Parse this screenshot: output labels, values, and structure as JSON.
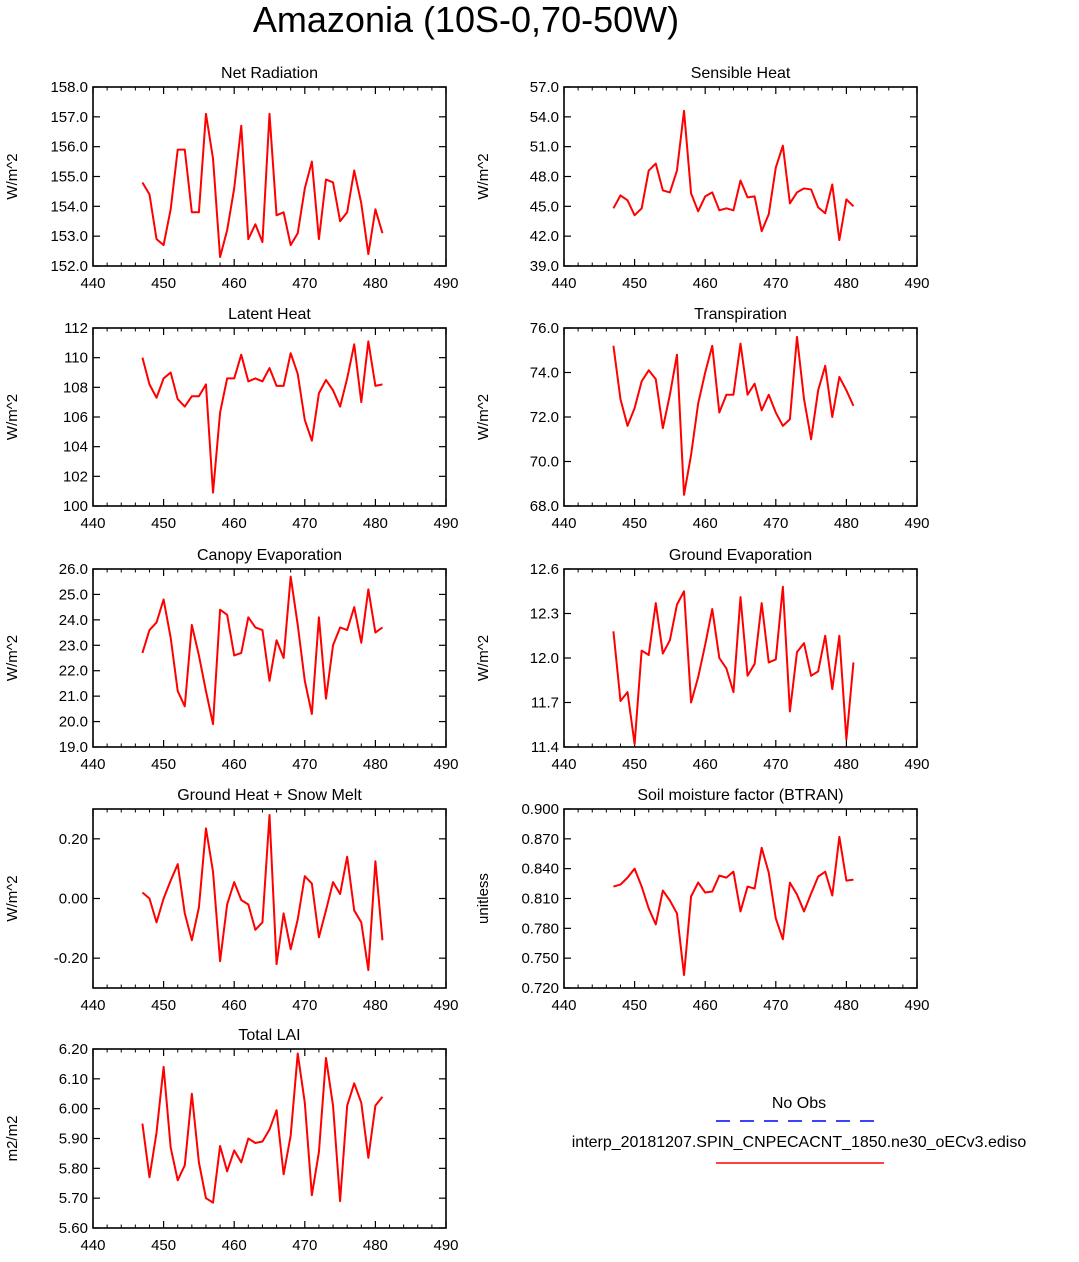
{
  "title": "Amazonia (10S-0,70-50W)",
  "colors": {
    "series": "#ff0000",
    "obs": "#0000ff",
    "axis": "#000000"
  },
  "legend": {
    "obs_label": "No Obs",
    "case_label": "interp_20181207.SPIN_CNPECACNT_1850.ne30_oECv3.ediso"
  },
  "chart_data": [
    {
      "type": "line",
      "title": "Net Radiation",
      "ylabel": "W/m^2",
      "xlim": [
        440,
        490
      ],
      "xticks": [
        440,
        450,
        460,
        470,
        480,
        490
      ],
      "ylim": [
        152.0,
        158.0
      ],
      "yticks": [
        "152.0",
        "153.0",
        "154.0",
        "155.0",
        "156.0",
        "157.0",
        "158.0"
      ],
      "x0": 447,
      "values": [
        154.8,
        154.4,
        152.9,
        152.7,
        153.9,
        155.9,
        155.9,
        153.8,
        153.8,
        157.1,
        155.6,
        152.3,
        153.2,
        154.6,
        156.7,
        152.9,
        153.4,
        152.8,
        157.1,
        153.7,
        153.8,
        152.7,
        153.1,
        154.6,
        155.5,
        152.9,
        154.9,
        154.8,
        153.5,
        153.8,
        155.2,
        154.1,
        152.4,
        153.9,
        153.1
      ]
    },
    {
      "type": "line",
      "title": "Sensible Heat",
      "ylabel": "W/m^2",
      "xlim": [
        440,
        490
      ],
      "xticks": [
        440,
        450,
        460,
        470,
        480,
        490
      ],
      "ylim": [
        39.0,
        57.0
      ],
      "yticks": [
        "39.0",
        "42.0",
        "45.0",
        "48.0",
        "51.0",
        "54.0",
        "57.0"
      ],
      "x0": 447,
      "values": [
        44.8,
        46.1,
        45.6,
        44.1,
        44.8,
        48.6,
        49.3,
        46.6,
        46.4,
        48.6,
        54.6,
        46.3,
        44.5,
        46.0,
        46.4,
        44.6,
        44.8,
        44.6,
        47.6,
        45.9,
        46.0,
        42.5,
        44.2,
        48.9,
        51.1,
        45.3,
        46.4,
        46.8,
        46.7,
        44.9,
        44.3,
        47.2,
        41.6,
        45.7,
        45.0
      ]
    },
    {
      "type": "line",
      "title": "Latent Heat",
      "ylabel": "W/m^2",
      "xlim": [
        440,
        490
      ],
      "xticks": [
        440,
        450,
        460,
        470,
        480,
        490
      ],
      "ylim": [
        100,
        112
      ],
      "yticks": [
        "100",
        "102",
        "104",
        "106",
        "108",
        "110",
        "112"
      ],
      "x0": 447,
      "values": [
        110.0,
        108.2,
        107.3,
        108.6,
        109.0,
        107.2,
        106.7,
        107.4,
        107.4,
        108.2,
        100.9,
        106.3,
        108.6,
        108.6,
        110.2,
        108.4,
        108.6,
        108.4,
        109.3,
        108.1,
        108.1,
        110.3,
        108.9,
        105.8,
        104.4,
        107.6,
        108.5,
        107.8,
        106.7,
        108.6,
        110.9,
        107.0,
        111.1,
        108.1,
        108.2
      ]
    },
    {
      "type": "line",
      "title": "Transpiration",
      "ylabel": "W/m^2",
      "xlim": [
        440,
        490
      ],
      "xticks": [
        440,
        450,
        460,
        470,
        480,
        490
      ],
      "ylim": [
        68.0,
        76.0
      ],
      "yticks": [
        "68.0",
        "70.0",
        "72.0",
        "74.0",
        "76.0"
      ],
      "x0": 447,
      "values": [
        75.2,
        72.8,
        71.6,
        72.4,
        73.6,
        74.1,
        73.7,
        71.5,
        73.0,
        74.8,
        68.5,
        70.3,
        72.6,
        74.0,
        75.2,
        72.2,
        73.0,
        73.0,
        75.3,
        73.0,
        73.5,
        72.3,
        73.0,
        72.2,
        71.6,
        71.9,
        75.6,
        72.8,
        71.0,
        73.2,
        74.3,
        72.0,
        73.8,
        73.2,
        72.5
      ]
    },
    {
      "type": "line",
      "title": "Canopy Evaporation",
      "ylabel": "W/m^2",
      "xlim": [
        440,
        490
      ],
      "xticks": [
        440,
        450,
        460,
        470,
        480,
        490
      ],
      "ylim": [
        19.0,
        26.0
      ],
      "yticks": [
        "19.0",
        "20.0",
        "21.0",
        "22.0",
        "23.0",
        "24.0",
        "25.0",
        "26.0"
      ],
      "x0": 447,
      "values": [
        22.7,
        23.6,
        23.9,
        24.8,
        23.3,
        21.2,
        20.6,
        23.8,
        22.6,
        21.2,
        19.9,
        24.4,
        24.2,
        22.6,
        22.7,
        24.1,
        23.7,
        23.6,
        21.6,
        23.2,
        22.5,
        25.7,
        23.8,
        21.6,
        20.3,
        24.1,
        20.9,
        23.0,
        23.7,
        23.6,
        24.5,
        23.1,
        25.2,
        23.5,
        23.7
      ]
    },
    {
      "type": "line",
      "title": "Ground Evaporation",
      "ylabel": "W/m^2",
      "xlim": [
        440,
        490
      ],
      "xticks": [
        440,
        450,
        460,
        470,
        480,
        490
      ],
      "ylim": [
        11.4,
        12.6
      ],
      "yticks": [
        "11.4",
        "11.7",
        "12.0",
        "12.3",
        "12.6"
      ],
      "x0": 447,
      "values": [
        12.18,
        11.71,
        11.77,
        11.42,
        12.05,
        12.02,
        12.37,
        12.03,
        12.12,
        12.36,
        12.45,
        11.7,
        11.87,
        12.09,
        12.33,
        12.0,
        11.93,
        11.77,
        12.41,
        11.88,
        11.96,
        12.37,
        11.97,
        11.99,
        12.48,
        11.64,
        12.04,
        12.1,
        11.88,
        11.91,
        12.15,
        11.79,
        12.15,
        11.45,
        11.97
      ]
    },
    {
      "type": "line",
      "title": "Ground Heat + Snow Melt",
      "ylabel": "W/m^2",
      "xlim": [
        440,
        490
      ],
      "xticks": [
        440,
        450,
        460,
        470,
        480,
        490
      ],
      "ylim": [
        -0.3,
        0.3
      ],
      "yticks": [
        "-0.20",
        "0.00",
        "0.20"
      ],
      "ytick_values": [
        -0.2,
        0.0,
        0.2
      ],
      "x0": 447,
      "values": [
        0.02,
        0.0,
        -0.08,
        0.0,
        0.06,
        0.115,
        -0.05,
        -0.14,
        -0.03,
        0.235,
        0.09,
        -0.21,
        -0.02,
        0.055,
        -0.005,
        -0.02,
        -0.105,
        -0.08,
        0.28,
        -0.22,
        -0.05,
        -0.17,
        -0.07,
        0.075,
        0.05,
        -0.13,
        -0.04,
        0.055,
        0.015,
        0.14,
        -0.04,
        -0.08,
        -0.24,
        0.125,
        -0.14
      ]
    },
    {
      "type": "line",
      "title": "Soil moisture factor (BTRAN)",
      "ylabel": "unitless",
      "xlim": [
        440,
        490
      ],
      "xticks": [
        440,
        450,
        460,
        470,
        480,
        490
      ],
      "ylim": [
        0.72,
        0.9
      ],
      "yticks": [
        "0.720",
        "0.750",
        "0.780",
        "0.810",
        "0.840",
        "0.870",
        "0.900"
      ],
      "x0": 447,
      "values": [
        0.822,
        0.824,
        0.831,
        0.84,
        0.822,
        0.8,
        0.784,
        0.818,
        0.808,
        0.795,
        0.733,
        0.812,
        0.826,
        0.816,
        0.817,
        0.833,
        0.831,
        0.837,
        0.797,
        0.822,
        0.82,
        0.861,
        0.836,
        0.79,
        0.769,
        0.826,
        0.814,
        0.797,
        0.815,
        0.832,
        0.837,
        0.813,
        0.872,
        0.828,
        0.829
      ]
    },
    {
      "type": "line",
      "title": "Total LAI",
      "ylabel": "m2/m2",
      "xlim": [
        440,
        490
      ],
      "xticks": [
        440,
        450,
        460,
        470,
        480,
        490
      ],
      "ylim": [
        5.6,
        6.2
      ],
      "yticks": [
        "5.60",
        "5.70",
        "5.80",
        "5.90",
        "6.00",
        "6.10",
        "6.20"
      ],
      "x0": 447,
      "values": [
        5.95,
        5.77,
        5.92,
        6.14,
        5.87,
        5.76,
        5.81,
        6.05,
        5.82,
        5.7,
        5.685,
        5.875,
        5.79,
        5.86,
        5.82,
        5.9,
        5.885,
        5.89,
        5.93,
        5.995,
        5.78,
        5.91,
        6.185,
        6.02,
        5.71,
        5.855,
        6.17,
        6.01,
        5.69,
        6.01,
        6.085,
        6.02,
        5.835,
        6.01,
        6.04
      ]
    }
  ]
}
